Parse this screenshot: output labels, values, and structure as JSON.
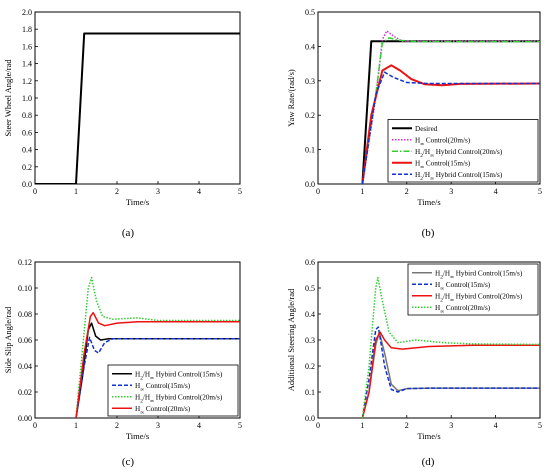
{
  "figure": {
    "panel_labels": [
      "(a)",
      "(b)",
      "(c)",
      "(d)"
    ]
  },
  "chart_data": [
    {
      "panel": "(a)",
      "type": "line",
      "xlabel": "Time/s",
      "ylabel": "Steer Wheel Angle/rad",
      "xlim": [
        0,
        5
      ],
      "ylim": [
        0,
        2.0
      ],
      "xticks": [
        0,
        1,
        2,
        3,
        4,
        5
      ],
      "yticks": [
        0.0,
        0.2,
        0.4,
        0.6,
        0.8,
        1.0,
        1.2,
        1.4,
        1.6,
        1.8,
        2.0
      ],
      "ytick_decimals": 1,
      "grid": false,
      "legend": null,
      "series": [
        {
          "name": "",
          "color": "#000000",
          "dash": "",
          "width": 2,
          "points": [
            [
              0,
              0
            ],
            [
              1.0,
              0
            ],
            [
              1.2,
              1.75
            ],
            [
              5,
              1.75
            ]
          ]
        }
      ]
    },
    {
      "panel": "(b)",
      "type": "line",
      "xlabel": "Time/s",
      "ylabel": "Yaw Rate/(rad/s)",
      "xlim": [
        0,
        5
      ],
      "ylim": [
        0,
        0.5
      ],
      "xticks": [
        0,
        1,
        2,
        3,
        4,
        5
      ],
      "yticks": [
        0.0,
        0.1,
        0.2,
        0.3,
        0.4,
        0.5
      ],
      "ytick_decimals": 1,
      "grid": false,
      "legend": "bottom-right",
      "series": [
        {
          "name": "Desired",
          "color": "#000000",
          "dash": "",
          "width": 2,
          "points": [
            [
              1.0,
              0
            ],
            [
              1.2,
              0.415
            ],
            [
              5,
              0.415
            ]
          ]
        },
        {
          "name": "H∞ Control(20m/s)",
          "color": "#cc33cc",
          "dash": "1.5,1.5",
          "width": 1.5,
          "points": [
            [
              1.0,
              0
            ],
            [
              1.3,
              0.25
            ],
            [
              1.45,
              0.42
            ],
            [
              1.55,
              0.445
            ],
            [
              1.7,
              0.43
            ],
            [
              1.9,
              0.415
            ],
            [
              5,
              0.415
            ]
          ]
        },
        {
          "name": "H2/H∞ Hybrid Control(20m/s)",
          "color": "#33cc33",
          "dash": "6,2,1.5,2",
          "width": 1.5,
          "points": [
            [
              1.0,
              0
            ],
            [
              1.3,
              0.26
            ],
            [
              1.45,
              0.41
            ],
            [
              1.6,
              0.425
            ],
            [
              1.8,
              0.418
            ],
            [
              2.2,
              0.414
            ],
            [
              5,
              0.414
            ]
          ]
        },
        {
          "name": "H∞ Control(15m/s)",
          "color": "#ee1111",
          "dash": "",
          "width": 2,
          "points": [
            [
              1.0,
              0
            ],
            [
              1.2,
              0.2
            ],
            [
              1.45,
              0.33
            ],
            [
              1.65,
              0.345
            ],
            [
              1.85,
              0.33
            ],
            [
              2.1,
              0.305
            ],
            [
              2.4,
              0.29
            ],
            [
              2.8,
              0.287
            ],
            [
              3.2,
              0.291
            ],
            [
              5,
              0.292
            ]
          ]
        },
        {
          "name": "H2/H∞ Hybrid Control(15m/s)",
          "color": "#1133cc",
          "dash": "4,2",
          "width": 1.5,
          "points": [
            [
              1.0,
              0
            ],
            [
              1.3,
              0.26
            ],
            [
              1.5,
              0.325
            ],
            [
              1.7,
              0.31
            ],
            [
              2.0,
              0.295
            ],
            [
              2.5,
              0.292
            ],
            [
              5,
              0.292
            ]
          ]
        }
      ]
    },
    {
      "panel": "(c)",
      "type": "line",
      "xlabel": "Time/s",
      "ylabel": "Side Slip Angle/rad",
      "xlim": [
        0,
        5
      ],
      "ylim": [
        0,
        0.12
      ],
      "xticks": [
        0,
        1,
        2,
        3,
        4,
        5
      ],
      "yticks": [
        0.0,
        0.02,
        0.04,
        0.06,
        0.08,
        0.1,
        0.12
      ],
      "ytick_decimals": 2,
      "grid": false,
      "legend": "bottom-right",
      "series": [
        {
          "name": "H2/H∞ Hybird Control(15m/s)",
          "color": "#000000",
          "dash": "",
          "width": 1.5,
          "points": [
            [
              1.0,
              0
            ],
            [
              1.15,
              0.03
            ],
            [
              1.3,
              0.068
            ],
            [
              1.38,
              0.073
            ],
            [
              1.48,
              0.063
            ],
            [
              1.6,
              0.06
            ],
            [
              1.8,
              0.061
            ],
            [
              5,
              0.061
            ]
          ]
        },
        {
          "name": "H∞ Control(15m/s)",
          "color": "#1133cc",
          "dash": "4,2",
          "width": 1.5,
          "points": [
            [
              1.0,
              0
            ],
            [
              1.2,
              0.04
            ],
            [
              1.33,
              0.062
            ],
            [
              1.45,
              0.052
            ],
            [
              1.55,
              0.05
            ],
            [
              1.7,
              0.058
            ],
            [
              1.9,
              0.061
            ],
            [
              5,
              0.061
            ]
          ]
        },
        {
          "name": "H2/H∞ Hybird Control(20m/s)",
          "color": "#33cc33",
          "dash": "1.5,1.5",
          "width": 1.5,
          "points": [
            [
              1.0,
              0
            ],
            [
              1.15,
              0.05
            ],
            [
              1.3,
              0.1
            ],
            [
              1.38,
              0.108
            ],
            [
              1.5,
              0.09
            ],
            [
              1.65,
              0.078
            ],
            [
              1.9,
              0.076
            ],
            [
              2.5,
              0.077
            ],
            [
              3.0,
              0.075
            ],
            [
              5,
              0.075
            ]
          ]
        },
        {
          "name": "H∞ Control(20m/s)",
          "color": "#ee1111",
          "dash": "",
          "width": 1.5,
          "points": [
            [
              1.0,
              0
            ],
            [
              1.2,
              0.05
            ],
            [
              1.35,
              0.078
            ],
            [
              1.42,
              0.081
            ],
            [
              1.55,
              0.073
            ],
            [
              1.7,
              0.071
            ],
            [
              2.0,
              0.073
            ],
            [
              2.5,
              0.074
            ],
            [
              5,
              0.074
            ]
          ]
        }
      ]
    },
    {
      "panel": "(d)",
      "type": "line",
      "xlabel": "Time/s",
      "ylabel": "Additional Steering Angle/rad",
      "xlim": [
        0,
        5
      ],
      "ylim": [
        0,
        0.6
      ],
      "xticks": [
        0,
        1,
        2,
        3,
        4,
        5
      ],
      "yticks": [
        0.0,
        0.1,
        0.2,
        0.3,
        0.4,
        0.5,
        0.6
      ],
      "ytick_decimals": 1,
      "grid": false,
      "legend": "top-right",
      "series": [
        {
          "name": "H2/H∞ Hybird Control(15m/s)",
          "color": "#777777",
          "dash": "",
          "width": 1.5,
          "points": [
            [
              1.0,
              0
            ],
            [
              1.15,
              0.1
            ],
            [
              1.3,
              0.28
            ],
            [
              1.38,
              0.33
            ],
            [
              1.5,
              0.25
            ],
            [
              1.65,
              0.13
            ],
            [
              1.8,
              0.105
            ],
            [
              2.0,
              0.113
            ],
            [
              2.5,
              0.115
            ],
            [
              5,
              0.115
            ]
          ]
        },
        {
          "name": "H∞ Control(15m/s)",
          "color": "#1133cc",
          "dash": "4,2",
          "width": 1.5,
          "points": [
            [
              1.0,
              0
            ],
            [
              1.15,
              0.15
            ],
            [
              1.3,
              0.34
            ],
            [
              1.36,
              0.35
            ],
            [
              1.5,
              0.2
            ],
            [
              1.65,
              0.11
            ],
            [
              1.8,
              0.1
            ],
            [
              2.0,
              0.113
            ],
            [
              2.5,
              0.115
            ],
            [
              5,
              0.115
            ]
          ]
        },
        {
          "name": "H2/H∞ Hybird Control(20m/s)",
          "color": "#ee1111",
          "dash": "",
          "width": 1.5,
          "points": [
            [
              1.0,
              0
            ],
            [
              1.15,
              0.1
            ],
            [
              1.3,
              0.3
            ],
            [
              1.4,
              0.33
            ],
            [
              1.5,
              0.3
            ],
            [
              1.65,
              0.27
            ],
            [
              1.9,
              0.265
            ],
            [
              2.5,
              0.275
            ],
            [
              3.5,
              0.28
            ],
            [
              5,
              0.28
            ]
          ]
        },
        {
          "name": "H∞ Control(20m/s)",
          "color": "#33cc33",
          "dash": "1.5,1.5",
          "width": 1.5,
          "points": [
            [
              1.0,
              0
            ],
            [
              1.15,
              0.2
            ],
            [
              1.3,
              0.5
            ],
            [
              1.35,
              0.54
            ],
            [
              1.45,
              0.45
            ],
            [
              1.6,
              0.33
            ],
            [
              1.8,
              0.29
            ],
            [
              2.2,
              0.3
            ],
            [
              2.8,
              0.29
            ],
            [
              3.5,
              0.285
            ],
            [
              5,
              0.283
            ]
          ]
        }
      ]
    }
  ]
}
